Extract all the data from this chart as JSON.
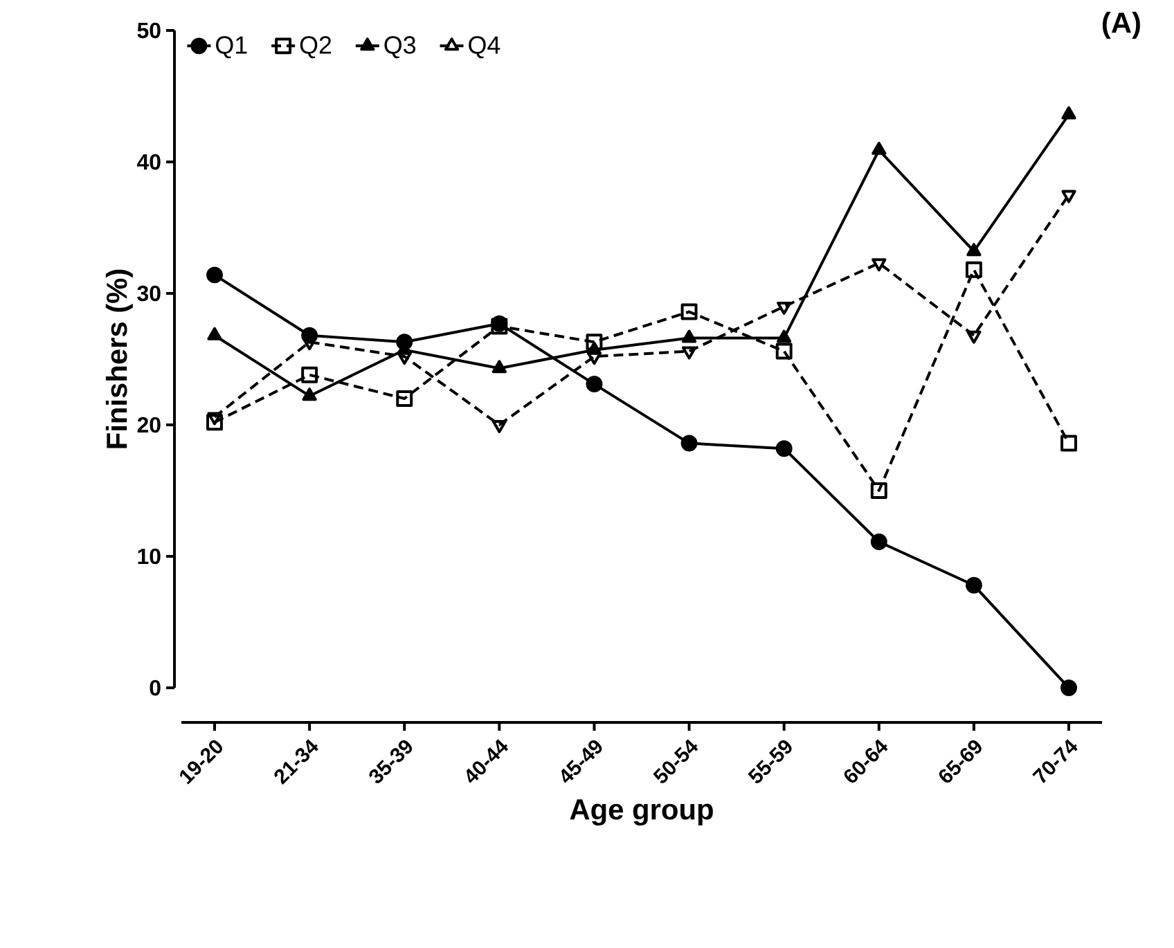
{
  "chart_data": {
    "type": "line",
    "xlabel": "Age group",
    "ylabel": "Finishers (%)",
    "annotations": [
      "(A)"
    ],
    "categories": [
      "19-20",
      "21-34",
      "35-39",
      "40-44",
      "45-49",
      "50-54",
      "55-59",
      "60-64",
      "65-69",
      "70-74"
    ],
    "series": [
      {
        "name": "Q1",
        "color": "#000000",
        "marker": "circle",
        "line_style": "solid",
        "values": [
          31.4,
          26.8,
          26.3,
          27.7,
          23.1,
          18.6,
          18.2,
          11.1,
          7.8,
          0
        ]
      },
      {
        "name": "Q2",
        "color": "#000000",
        "marker": "square",
        "line_style": "dashed",
        "values": [
          20.2,
          23.8,
          22.0,
          27.5,
          26.3,
          28.6,
          25.6,
          15.0,
          31.8,
          18.6
        ]
      },
      {
        "name": "Q3",
        "color": "#000000",
        "marker": "triangle",
        "line_style": "solid",
        "values": [
          26.8,
          22.2,
          25.7,
          24.3,
          25.7,
          26.6,
          26.6,
          40.9,
          33.2,
          43.6
        ]
      },
      {
        "name": "Q4",
        "color": "#000000",
        "marker": "triangle-down",
        "line_style": "dashed",
        "values": [
          20.6,
          26.3,
          25.2,
          20.0,
          25.2,
          25.6,
          29.0,
          32.3,
          26.8,
          37.5
        ]
      }
    ],
    "ylim": [
      0,
      50
    ],
    "yticks": [
      0,
      10,
      20,
      30,
      40,
      50
    ],
    "grid": false,
    "legend": "top left"
  }
}
